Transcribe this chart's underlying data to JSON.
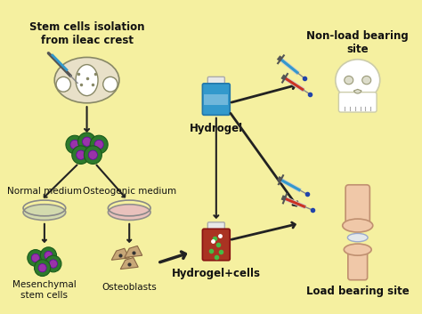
{
  "background_color": "#f5f0a0",
  "labels": {
    "stem_cells": "Stem cells isolation\nfrom ileac crest",
    "normal_medium": "Normal medium",
    "osteogenic_medium": "Osteogenic medium",
    "mesenchymal": "Mesenchymal\nstem cells",
    "osteoblasts": "Osteoblasts",
    "hydrogel": "Hydrogel",
    "hydrogel_cells": "Hydrogel+cells",
    "non_load": "Non-load bearing\nsite",
    "load_bearing": "Load bearing site"
  },
  "colors": {
    "background": "#f5f0a0",
    "pelvis_fill": "#e8e0c8",
    "pelvis_stroke": "#888866",
    "cell_outer": "#2d7a2d",
    "cell_inner": "#9933aa",
    "dish_normal": "#d0d8b0",
    "dish_osteo": "#e8bcc0",
    "osteoblast_fill": "#c8a878",
    "hydrogel_bottle_fill": "#3399cc",
    "hydrogel_cells_bottle_fill": "#aa3322",
    "bottle_cap": "#e8e8e8",
    "skull_fill": "#f0f0e8",
    "knee_fill": "#f0c8a8",
    "syringe_body": "#dddddd",
    "syringe_liquid_blue": "#3399cc",
    "syringe_liquid_red": "#cc3322",
    "arrow_color": "#222222",
    "text_color": "#111111",
    "label_fontsize": 8.5,
    "label_fontsize_sm": 7.5
  }
}
